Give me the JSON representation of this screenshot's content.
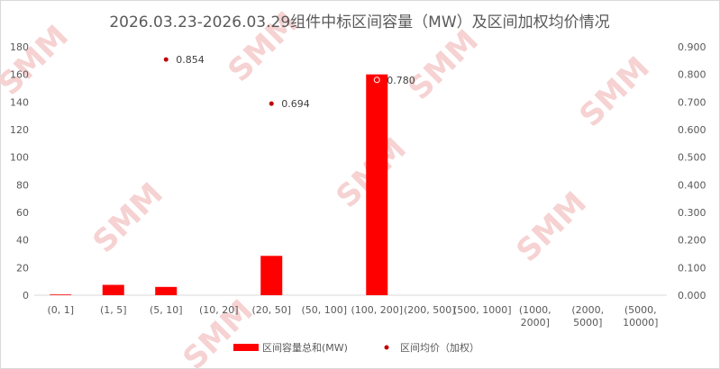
{
  "chart_data": {
    "type": "bar",
    "title": "2026.03.23-2026.03.29组件中标区间容量（MW）及区间加权均价情况",
    "categories": [
      "(0, 1]",
      "(1, 5]",
      "(5, 10]",
      "(10, 20]",
      "(20, 50]",
      "(50, 100]",
      "(100, 200]",
      "(200, 500]",
      "(500, 1000]",
      "(1000, 2000]",
      "(2000, 5000]",
      "(5000, 10000]"
    ],
    "series": [
      {
        "name": "区间容量总和(MW)",
        "type": "bar",
        "axis": "left",
        "color": "#ff0000",
        "values": [
          0.5,
          7.5,
          6,
          0,
          28.5,
          0,
          160,
          0,
          0,
          0,
          0,
          0
        ]
      },
      {
        "name": "区间均价（加权）",
        "type": "scatter",
        "axis": "right",
        "color": "#c00000",
        "values": [
          null,
          null,
          0.854,
          null,
          0.694,
          null,
          0.78,
          null,
          null,
          null,
          null,
          null
        ],
        "labels": [
          null,
          null,
          "0.854",
          null,
          "0.694",
          null,
          "0.780",
          null,
          null,
          null,
          null,
          null
        ]
      }
    ],
    "y_left": {
      "min": 0,
      "max": 180,
      "ticks": [
        "0",
        "20",
        "40",
        "60",
        "80",
        "100",
        "120",
        "140",
        "160",
        "180"
      ]
    },
    "y_right": {
      "min": 0,
      "max": 0.9,
      "ticks": [
        "0.000",
        "0.100",
        "0.200",
        "0.300",
        "0.400",
        "0.500",
        "0.600",
        "0.700",
        "0.800",
        "0.900"
      ]
    },
    "grid": false,
    "legend_position": "bottom",
    "watermark": "SMM"
  }
}
